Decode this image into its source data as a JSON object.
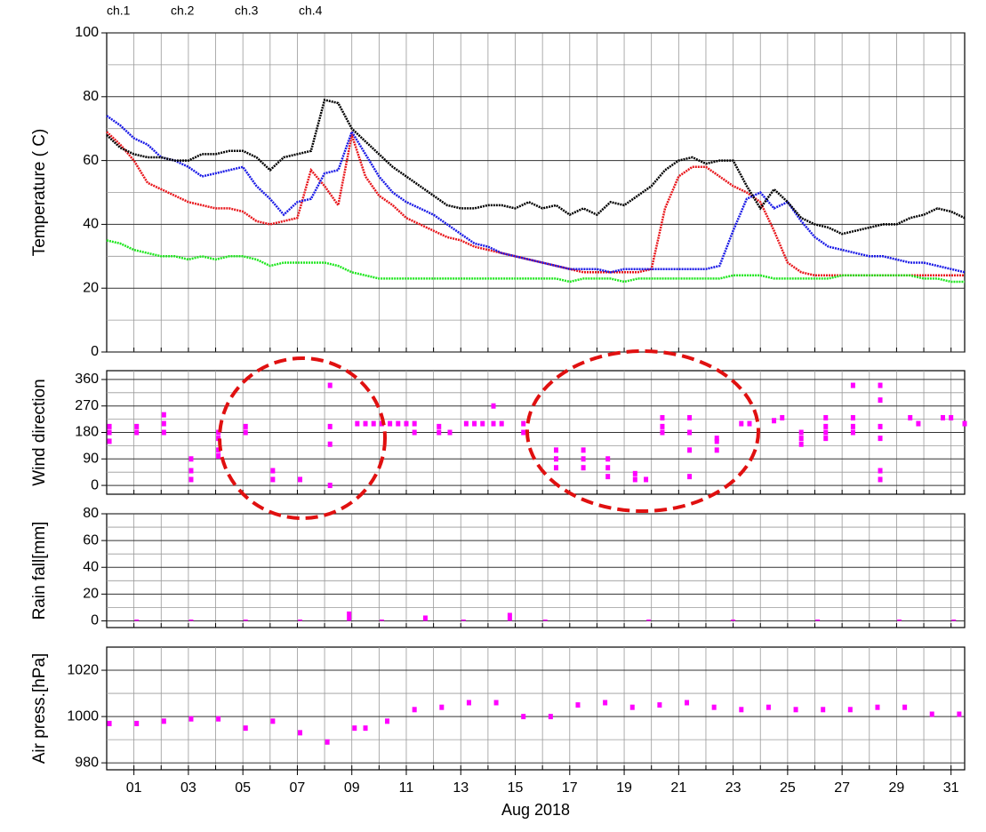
{
  "chart_data": [
    {
      "type": "line",
      "ylabel": "Temperature ( C)",
      "xlim": [
        0,
        31.5
      ],
      "ylim": [
        0,
        100
      ],
      "yticks": [
        0,
        20,
        40,
        60,
        80,
        100
      ],
      "yminor": [
        10,
        30,
        50,
        70,
        90
      ],
      "xgrid": [
        1,
        2,
        3,
        4,
        5,
        6,
        7,
        8,
        9,
        10,
        11,
        12,
        13,
        14,
        15,
        16,
        17,
        18,
        19,
        20,
        21,
        22,
        23,
        24,
        25,
        26,
        27,
        28,
        29,
        30,
        31
      ],
      "legend": "top",
      "x": [
        0,
        0.5,
        1,
        1.5,
        2,
        2.5,
        3,
        3.5,
        4,
        4.5,
        5,
        5.5,
        6,
        6.5,
        7,
        7.5,
        8,
        8.5,
        9,
        9.5,
        10,
        10.5,
        11,
        11.5,
        12,
        12.5,
        13,
        13.5,
        14,
        14.5,
        15,
        15.5,
        16,
        16.5,
        17,
        17.5,
        18,
        18.5,
        19,
        19.5,
        20,
        20.5,
        21,
        21.5,
        22,
        22.5,
        23,
        23.5,
        24,
        24.5,
        25,
        25.5,
        26,
        26.5,
        27,
        27.5,
        28,
        28.5,
        29,
        29.5,
        30,
        30.5,
        31,
        31.5
      ],
      "series": [
        {
          "name": "ch.1",
          "color": "#e8161b",
          "values": [
            69,
            65,
            60,
            53,
            51,
            49,
            47,
            46,
            45,
            45,
            44,
            41,
            40,
            41,
            42,
            57,
            52,
            46,
            68,
            55,
            49,
            46,
            42,
            40,
            38,
            36,
            35,
            33,
            32,
            31,
            30,
            29,
            28,
            27,
            26,
            25,
            25,
            25,
            25,
            25,
            26,
            45,
            55,
            58,
            58,
            55,
            52,
            50,
            47,
            38,
            28,
            25,
            24,
            24,
            24,
            24,
            24,
            24,
            24,
            24,
            24,
            24,
            24,
            24
          ]
        },
        {
          "name": "ch.2",
          "color": "#1a1ae6",
          "values": [
            74,
            71,
            67,
            65,
            61,
            60,
            58,
            55,
            56,
            57,
            58,
            52,
            48,
            43,
            47,
            48,
            56,
            57,
            69,
            62,
            55,
            50,
            47,
            45,
            43,
            40,
            37,
            34,
            33,
            31,
            30,
            29,
            28,
            27,
            26,
            26,
            26,
            25,
            26,
            26,
            26,
            26,
            26,
            26,
            26,
            27,
            38,
            48,
            50,
            45,
            47,
            41,
            36,
            33,
            32,
            31,
            30,
            30,
            29,
            28,
            28,
            27,
            26,
            25
          ]
        },
        {
          "name": "ch.3",
          "color": "#1ee61e",
          "values": [
            35,
            34,
            32,
            31,
            30,
            30,
            29,
            30,
            29,
            30,
            30,
            29,
            27,
            28,
            28,
            28,
            28,
            27,
            25,
            24,
            23,
            23,
            23,
            23,
            23,
            23,
            23,
            23,
            23,
            23,
            23,
            23,
            23,
            23,
            22,
            23,
            23,
            23,
            22,
            23,
            23,
            23,
            23,
            23,
            23,
            23,
            24,
            24,
            24,
            23,
            23,
            23,
            23,
            23,
            24,
            24,
            24,
            24,
            24,
            24,
            23,
            23,
            22,
            22
          ]
        },
        {
          "name": "ch.4",
          "color": "#000000",
          "values": [
            68,
            64,
            62,
            61,
            61,
            60,
            60,
            62,
            62,
            63,
            63,
            61,
            57,
            61,
            62,
            63,
            79,
            78,
            70,
            66,
            62,
            58,
            55,
            52,
            49,
            46,
            45,
            45,
            46,
            46,
            45,
            47,
            45,
            46,
            43,
            45,
            43,
            47,
            46,
            49,
            52,
            57,
            60,
            61,
            59,
            60,
            60,
            52,
            45,
            51,
            47,
            42,
            40,
            39,
            37,
            38,
            39,
            40,
            40,
            42,
            43,
            45,
            44,
            42
          ]
        }
      ]
    },
    {
      "type": "scatter",
      "ylabel": "Wind direction",
      "xlim": [
        0,
        31.5
      ],
      "ylim": [
        -30,
        390
      ],
      "yticks": [
        0,
        90,
        180,
        270,
        360
      ],
      "yminor": [
        45,
        135,
        225,
        315
      ],
      "xgrid": [
        1,
        2,
        3,
        4,
        5,
        6,
        7,
        8,
        9,
        10,
        11,
        12,
        13,
        14,
        15,
        16,
        17,
        18,
        19,
        20,
        21,
        22,
        23,
        24,
        25,
        26,
        27,
        28,
        29,
        30,
        31
      ],
      "color": "#ff00ff",
      "x": [
        0.1,
        0.1,
        0.1,
        1.1,
        1.1,
        2.1,
        2.1,
        2.1,
        3.1,
        3.1,
        3.1,
        4.1,
        4.1,
        4.1,
        4.1,
        5.1,
        5.1,
        6.1,
        6.1,
        7.1,
        8.2,
        8.2,
        8.2,
        8.2,
        9.2,
        9.5,
        9.8,
        10.1,
        10.4,
        10.7,
        11.0,
        11.3,
        11.3,
        12.2,
        12.2,
        12.6,
        13.2,
        13.5,
        13.8,
        14.2,
        14.5,
        14.2,
        15.3,
        15.3,
        16.5,
        16.5,
        16.5,
        17.5,
        17.5,
        17.5,
        18.4,
        18.4,
        18.4,
        19.4,
        19.4,
        19.8,
        20.4,
        20.4,
        20.4,
        21.4,
        21.4,
        21.4,
        21.4,
        22.4,
        22.4,
        22.4,
        23.3,
        23.6,
        24.5,
        24.8,
        25.5,
        25.5,
        25.5,
        26.4,
        26.4,
        26.4,
        26.4,
        27.4,
        27.4,
        27.4,
        27.4,
        28.4,
        28.4,
        28.4,
        28.4,
        28.4,
        28.4,
        29.5,
        29.8,
        30.7,
        31.0,
        31.5
      ],
      "values": [
        150,
        180,
        200,
        180,
        200,
        180,
        210,
        240,
        20,
        50,
        90,
        180,
        160,
        120,
        100,
        180,
        200,
        20,
        50,
        20,
        340,
        200,
        140,
        0,
        210,
        210,
        210,
        210,
        210,
        210,
        210,
        180,
        210,
        180,
        200,
        180,
        210,
        210,
        210,
        210,
        210,
        270,
        180,
        210,
        60,
        90,
        120,
        60,
        90,
        120,
        30,
        60,
        90,
        20,
        40,
        20,
        180,
        200,
        230,
        180,
        230,
        120,
        30,
        120,
        150,
        160,
        210,
        210,
        220,
        230,
        140,
        160,
        180,
        160,
        180,
        200,
        230,
        340,
        230,
        200,
        180,
        340,
        290,
        200,
        160,
        50,
        20,
        230,
        210,
        230,
        230,
        210
      ]
    },
    {
      "type": "bar",
      "ylabel": "Rain fall[mm]",
      "xlim": [
        0,
        31.5
      ],
      "ylim": [
        -5,
        80
      ],
      "yticks": [
        0,
        20,
        40,
        60,
        80
      ],
      "yminor": [
        10,
        30,
        50,
        70
      ],
      "xgrid": [
        1,
        2,
        3,
        4,
        5,
        6,
        7,
        8,
        9,
        10,
        11,
        12,
        13,
        14,
        15,
        16,
        17,
        18,
        19,
        20,
        21,
        22,
        23,
        24,
        25,
        26,
        27,
        28,
        29,
        30,
        31
      ],
      "color": "#ff00ff",
      "x": [
        1.1,
        3.1,
        5.1,
        7.1,
        8.9,
        10.1,
        11.7,
        13.1,
        14.8,
        16.1,
        19.9,
        23.0,
        26.1,
        29.1,
        31.1
      ],
      "values": [
        0.3,
        0.3,
        0.3,
        0.3,
        7,
        0.5,
        4,
        0.3,
        6,
        0.3,
        0.5,
        1,
        0.3,
        0.3,
        0.3
      ]
    },
    {
      "type": "scatter",
      "ylabel": "Air press.[hPa]",
      "xlabel": "Aug 2018",
      "xlim": [
        0,
        31.5
      ],
      "ylim": [
        977,
        1030
      ],
      "yticks": [
        980,
        1000,
        1020
      ],
      "yminor": [
        990,
        1010
      ],
      "xgrid": [
        1,
        2,
        3,
        4,
        5,
        6,
        7,
        8,
        9,
        10,
        11,
        12,
        13,
        14,
        15,
        16,
        17,
        18,
        19,
        20,
        21,
        22,
        23,
        24,
        25,
        26,
        27,
        28,
        29,
        30,
        31
      ],
      "xticks": [
        {
          "value": 1,
          "label": "01"
        },
        {
          "value": 3,
          "label": "03"
        },
        {
          "value": 5,
          "label": "05"
        },
        {
          "value": 7,
          "label": "07"
        },
        {
          "value": 9,
          "label": "09"
        },
        {
          "value": 11,
          "label": "11"
        },
        {
          "value": 13,
          "label": "13"
        },
        {
          "value": 15,
          "label": "15"
        },
        {
          "value": 17,
          "label": "17"
        },
        {
          "value": 19,
          "label": "19"
        },
        {
          "value": 21,
          "label": "21"
        },
        {
          "value": 23,
          "label": "23"
        },
        {
          "value": 25,
          "label": "25"
        },
        {
          "value": 27,
          "label": "27"
        },
        {
          "value": 29,
          "label": "29"
        },
        {
          "value": 31,
          "label": "31"
        }
      ],
      "color": "#ff00ff",
      "x": [
        0.1,
        1.1,
        2.1,
        3.1,
        4.1,
        5.1,
        6.1,
        7.1,
        8.1,
        9.1,
        9.5,
        10.3,
        11.3,
        12.3,
        13.3,
        14.3,
        15.3,
        16.3,
        17.3,
        18.3,
        19.3,
        20.3,
        21.3,
        22.3,
        23.3,
        24.3,
        25.3,
        26.3,
        27.3,
        28.3,
        29.3,
        30.3,
        31.3
      ],
      "values": [
        997,
        997,
        998,
        999,
        999,
        995,
        998,
        993,
        989,
        995,
        995,
        998,
        1003,
        1004,
        1006,
        1006,
        1000,
        1000,
        1005,
        1006,
        1004,
        1005,
        1006,
        1004,
        1003,
        1004,
        1003,
        1003,
        1003,
        1004,
        1004,
        1001,
        1001
      ]
    }
  ]
}
